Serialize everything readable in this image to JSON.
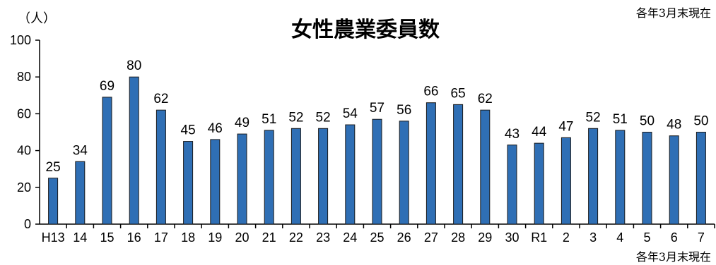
{
  "chart_data": {
    "type": "bar",
    "title": "女性農業委員数",
    "unit_label": "（人）",
    "note_top": "各年3月末現在",
    "note_bottom": "各年3月末現在",
    "categories": [
      "H13",
      "14",
      "15",
      "16",
      "17",
      "18",
      "19",
      "20",
      "21",
      "22",
      "23",
      "24",
      "25",
      "26",
      "27",
      "28",
      "29",
      "30",
      "R1",
      "2",
      "3",
      "4",
      "5",
      "6",
      "7"
    ],
    "values": [
      25,
      34,
      69,
      80,
      62,
      45,
      46,
      49,
      51,
      52,
      52,
      54,
      57,
      56,
      66,
      65,
      62,
      43,
      44,
      47,
      52,
      51,
      50,
      48,
      50
    ],
    "ylim": [
      0,
      100
    ],
    "yticks": [
      0,
      20,
      40,
      60,
      80,
      100
    ],
    "ytick_labels": [
      "0",
      "20",
      "40",
      "60",
      "80",
      "100"
    ],
    "xlabel": "",
    "ylabel": "",
    "grid": false,
    "bar_color": "#2f6fb5",
    "bar_edge_color": "#1a1a1a"
  }
}
